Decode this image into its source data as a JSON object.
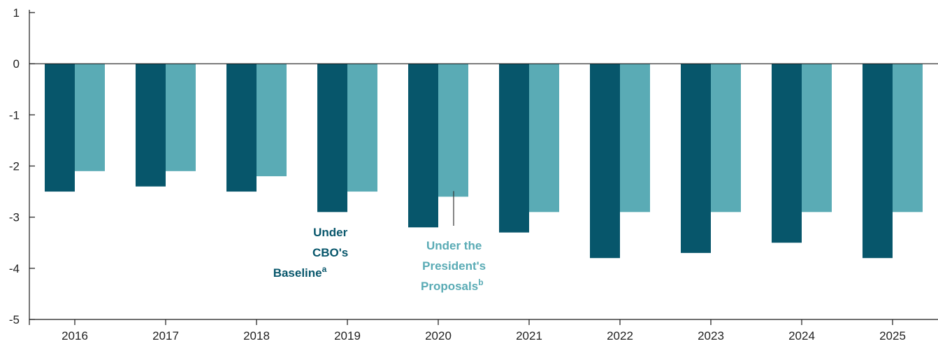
{
  "colors": {
    "baseline": "#07566b",
    "proposals": "#5aabb5",
    "axis": "#1a1a1a"
  },
  "chart_data": {
    "type": "bar",
    "categories": [
      "2016",
      "2017",
      "2018",
      "2019",
      "2020",
      "2021",
      "2022",
      "2023",
      "2024",
      "2025"
    ],
    "series": [
      {
        "values": [
          -2.5,
          -2.4,
          -2.5,
          -2.9,
          -3.2,
          -3.3,
          -3.8,
          -3.7,
          -3.5,
          -3.8
        ]
      },
      {
        "values": [
          -2.1,
          -2.1,
          -2.2,
          -2.5,
          -2.6,
          -2.9,
          -2.9,
          -2.9,
          -2.9,
          -2.9
        ]
      }
    ],
    "ylim": [
      -5,
      1
    ],
    "yticks": [
      "1",
      "0",
      "-1",
      "-2",
      "-3",
      "-4",
      "-5"
    ],
    "grid": false
  },
  "annotations": {
    "baseline": {
      "lines": [
        "Under",
        "CBO's"
      ],
      "last": "Baseline",
      "sup": "a"
    },
    "proposals": {
      "lines": [
        "Under the",
        "President's"
      ],
      "last": "Proposals",
      "sup": "b"
    }
  }
}
